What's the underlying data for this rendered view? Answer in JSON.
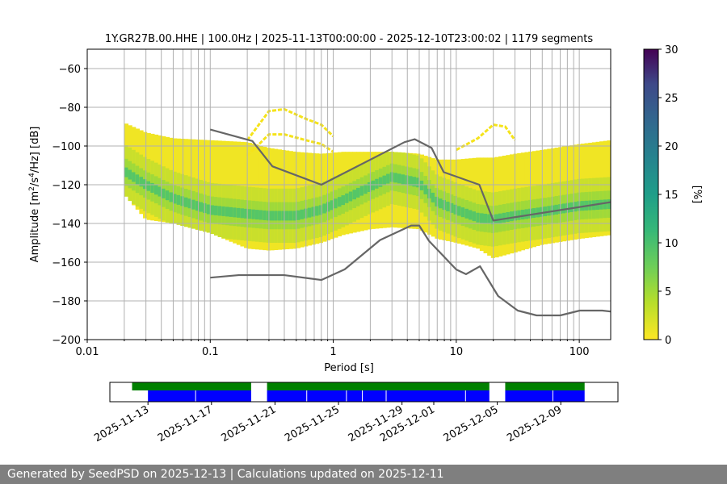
{
  "chart_data": {
    "type": "heatmap",
    "title": "1Y.GR27B.00.HHE | 100.0Hz | 2025-11-13T00:00:00 - 2025-12-10T23:00:02 | 1179 segments",
    "xlabel": "Period [s]",
    "ylabel_main": "Amplitude [m",
    "ylabel_exp1": "2",
    "ylabel_mid": "/s",
    "ylabel_exp2": "4",
    "ylabel_end": "/Hz] [dB]",
    "x_scale": "log",
    "xlim": [
      0.01,
      180
    ],
    "ylim": [
      -200,
      -50
    ],
    "x_ticks": [
      0.01,
      0.1,
      1,
      10,
      100
    ],
    "x_tick_labels": [
      "0.01",
      "0.1",
      "1",
      "10",
      "100"
    ],
    "y_ticks": [
      -200,
      -180,
      -160,
      -140,
      -120,
      -100,
      -80,
      -60
    ],
    "y_tick_labels": [
      "−200",
      "−180",
      "−160",
      "−140",
      "−120",
      "−100",
      "−80",
      "−60"
    ],
    "grid": true,
    "colorbar": {
      "label": "[%]",
      "range": [
        0,
        30
      ],
      "ticks": [
        0,
        5,
        10,
        15,
        20,
        25,
        30
      ],
      "tick_labels": [
        "0",
        "5",
        "10",
        "15",
        "20",
        "25",
        "30"
      ]
    },
    "psd_band": {
      "period": [
        0.02,
        0.03,
        0.05,
        0.1,
        0.2,
        0.3,
        0.5,
        0.8,
        1.2,
        2,
        3,
        5,
        7,
        10,
        15,
        20,
        30,
        50,
        100,
        180
      ],
      "upper": [
        -88,
        -93,
        -96,
        -97,
        -98,
        -101,
        -103,
        -104,
        -103,
        -103,
        -103,
        -104,
        -107,
        -107,
        -106,
        -106,
        -104,
        -102,
        -99,
        -97
      ],
      "lower": [
        -125,
        -138,
        -140,
        -145,
        -153,
        -154,
        -153,
        -150,
        -146,
        -143,
        -142,
        -143,
        -148,
        -150,
        -153,
        -158,
        -155,
        -151,
        -148,
        -146
      ],
      "mode": [
        -113,
        -120,
        -127,
        -133,
        -135,
        -136,
        -136,
        -133,
        -128,
        -121,
        -116,
        -119,
        -129,
        -133,
        -137,
        -138,
        -136,
        -134,
        -131,
        -130
      ]
    },
    "outlier_curve": {
      "period": [
        0.2,
        0.3,
        0.4,
        0.6,
        0.8,
        1.0
      ],
      "upper": [
        -97,
        -82,
        -81,
        -86,
        -89,
        -95
      ],
      "lower": [
        -105,
        -94,
        -94,
        -97,
        -99,
        -103
      ]
    },
    "outlier_curve2": {
      "period": [
        10,
        15,
        20,
        25,
        30
      ],
      "upper": [
        -102,
        -96,
        -89,
        -90,
        -97
      ]
    },
    "nhnm": {
      "period": [
        0.1,
        0.22,
        0.32,
        0.8,
        3.8,
        4.6,
        6.3,
        7.9,
        15.4,
        20,
        180
      ],
      "db": [
        -91.5,
        -97.4,
        -110.5,
        -120,
        -98,
        -96.5,
        -101,
        -113.5,
        -120,
        -138.5,
        -129
      ]
    },
    "nlnm": {
      "period": [
        0.1,
        0.17,
        0.4,
        0.8,
        1.24,
        2.4,
        4.3,
        5,
        6,
        10,
        12,
        15.6,
        21.9,
        31.6,
        45,
        70,
        101,
        154,
        180
      ],
      "db": [
        -168,
        -166.7,
        -166.7,
        -169.2,
        -163.7,
        -148.6,
        -141.1,
        -141.1,
        -149,
        -163.8,
        -166.2,
        -162.1,
        -177.5,
        -185,
        -187.5,
        -187.5,
        -185,
        -185,
        -185.5
      ]
    },
    "timeline": {
      "tick_labels": [
        "2025-11-13",
        "2025-11-17",
        "2025-11-21",
        "2025-11-25",
        "2025-11-29",
        "2025-12-01",
        "2025-12-05",
        "2025-12-09"
      ],
      "tick_day_offsets": [
        0,
        4,
        8,
        12,
        16,
        18,
        22,
        26
      ],
      "range_days": [
        -2.4,
        29.6
      ],
      "green_segments": [
        [
          -1,
          6.5
        ],
        [
          7.5,
          21.5
        ],
        [
          22.5,
          27.5
        ]
      ],
      "blue_segments": [
        [
          0,
          6.5
        ],
        [
          7.5,
          21.5
        ],
        [
          22.5,
          27.5
        ]
      ],
      "blue_gap_days": [
        3,
        10,
        12.5,
        13.5,
        15,
        20,
        25.5
      ]
    }
  },
  "footer": {
    "text": "Generated by SeedPSD on 2025-12-13 | Calculations updated on 2025-12-11"
  }
}
